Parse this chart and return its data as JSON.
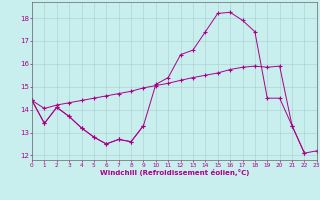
{
  "xlabel": "Windchill (Refroidissement éolien,°C)",
  "xlim": [
    0,
    23
  ],
  "ylim": [
    11.8,
    18.7
  ],
  "xticks": [
    0,
    1,
    2,
    3,
    4,
    5,
    6,
    7,
    8,
    9,
    10,
    11,
    12,
    13,
    14,
    15,
    16,
    17,
    18,
    19,
    20,
    21,
    22,
    23
  ],
  "yticks": [
    12,
    13,
    14,
    15,
    16,
    17,
    18
  ],
  "bg_color": "#c8eeee",
  "line_color": "#aa0088",
  "line1_y": [
    14.4,
    13.4,
    14.1,
    13.7,
    13.2,
    12.8,
    12.5,
    12.7,
    12.6,
    13.3,
    null,
    null,
    null,
    null,
    null,
    null,
    null,
    null,
    null,
    null,
    null,
    null,
    null,
    null
  ],
  "line2_y": [
    14.4,
    14.05,
    14.2,
    14.3,
    14.4,
    14.5,
    14.6,
    14.7,
    14.8,
    14.95,
    15.05,
    15.15,
    15.28,
    15.4,
    15.5,
    15.6,
    15.75,
    15.85,
    15.9,
    15.85,
    15.9,
    13.3,
    12.1,
    null
  ],
  "line3_y": [
    14.4,
    13.4,
    14.1,
    13.7,
    13.2,
    12.8,
    12.5,
    12.7,
    12.6,
    13.3,
    15.1,
    15.4,
    16.4,
    16.6,
    17.4,
    18.2,
    18.25,
    17.9,
    17.4,
    14.5,
    14.5,
    13.3,
    12.1,
    12.2
  ]
}
